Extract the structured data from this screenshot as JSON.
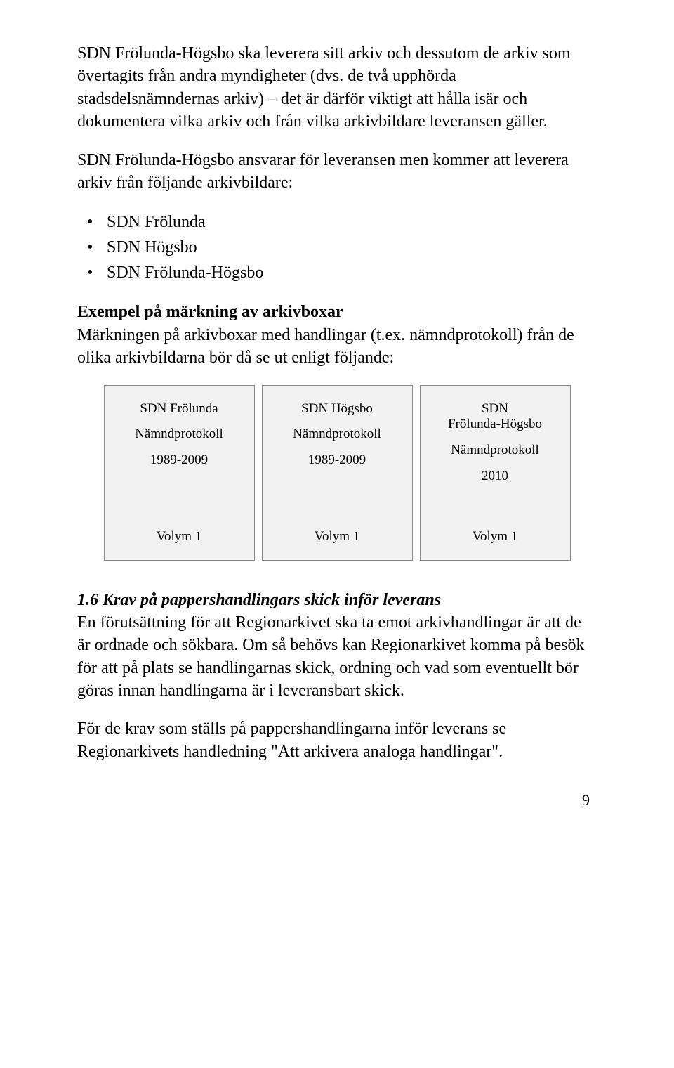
{
  "p1": "SDN Frölunda-Högsbo ska leverera sitt arkiv och dessutom de arkiv som övertagits från andra myndigheter (dvs. de två upphörda stadsdelsnämndernas arkiv) – det är därför viktigt att hålla isär och dokumentera vilka arkiv och från vilka arkivbildare leveransen gäller.",
  "p2": "SDN Frölunda-Högsbo ansvarar för leveransen men kommer att leverera arkiv från följande arkivbildare:",
  "bullets": [
    "SDN Frölunda",
    "SDN Högsbo",
    "SDN Frölunda-Högsbo"
  ],
  "example_heading": "Exempel på märkning av arkivboxar",
  "p3": "Märkningen på arkivboxar med handlingar (t.ex. nämndprotokoll) från de olika arkivbildarna bör då se ut enligt följande:",
  "boxes": [
    {
      "title": "SDN Frölunda",
      "line2": "Nämndprotokoll",
      "line3": "1989-2009",
      "volume": "Volym 1"
    },
    {
      "title": "SDN Högsbo",
      "line2": "Nämndprotokoll",
      "line3": "1989-2009",
      "volume": "Volym 1"
    },
    {
      "title": "SDN\nFrölunda-Högsbo",
      "line2": "Nämndprotokoll",
      "line3": "2010",
      "volume": "Volym 1"
    }
  ],
  "section_title": "1.6 Krav på pappershandlingars skick inför leverans",
  "p4": "En förutsättning för att Regionarkivet ska ta emot arkivhandlingar är att de är ordnade och sökbara. Om så behövs kan Regionarkivet komma på besök för att på plats se handlingarnas skick, ordning och vad som eventuellt bör göras innan handlingarna är i leveransbart skick.",
  "p5": "För de krav som ställs på pappershandlingarna inför leverans se Regionarkivets handledning \"Att arkivera analoga handlingar\".",
  "page_number": "9"
}
